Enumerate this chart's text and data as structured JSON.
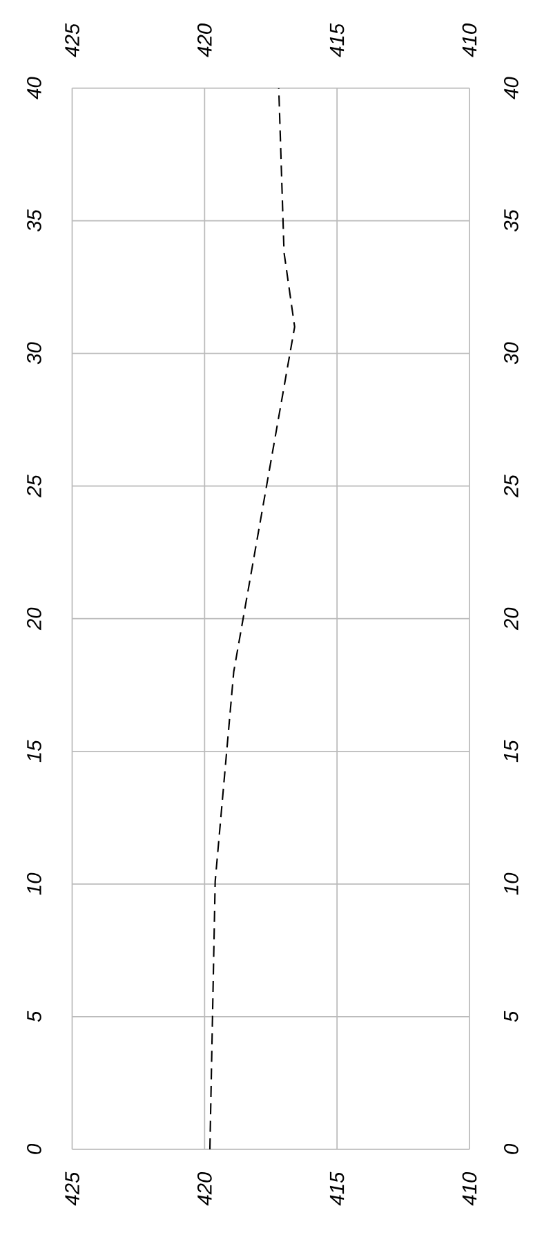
{
  "chart_data": {
    "type": "line",
    "x": [
      419.8,
      419.6,
      418.9,
      416.6,
      417.0,
      417.2
    ],
    "values": [
      0,
      10.1,
      18.0,
      31.0,
      33.8,
      40
    ],
    "color": "#000000",
    "line_style": "dashed",
    "marker": "none",
    "xlim": [
      425,
      410
    ],
    "xticks": [
      425,
      420,
      415,
      410
    ],
    "x2lim": [
      425,
      410
    ],
    "x2ticks": [
      425,
      420,
      415,
      410
    ],
    "ylim": [
      0,
      40
    ],
    "yticks": [
      0,
      5,
      10,
      15,
      20,
      25,
      30,
      35,
      40
    ],
    "y2lim": [
      0,
      40
    ],
    "y2ticks": [
      0,
      5,
      10,
      15,
      20,
      25,
      30,
      35,
      40
    ],
    "grid": true
  }
}
